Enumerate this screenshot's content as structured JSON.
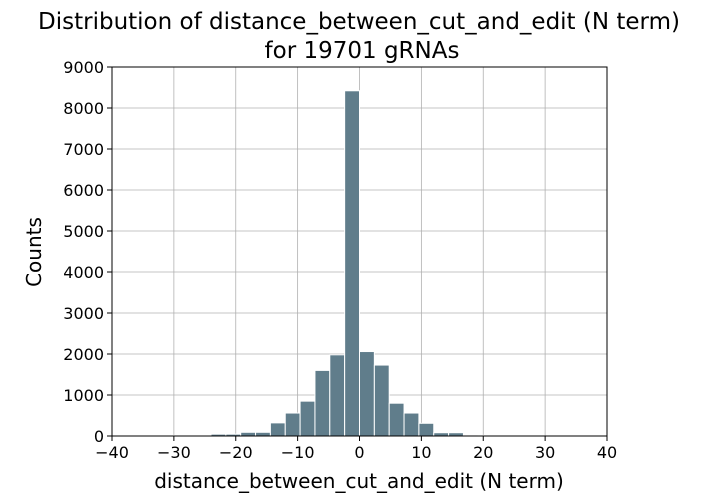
{
  "chart_data": {
    "type": "bar",
    "title_line1": "Distribution of distance_between_cut_and_edit (N term)",
    "title_line2": "for 19701 gRNAs",
    "xlabel": "distance_between_cut_and_edit (N term)",
    "ylabel": "Counts",
    "xlim": [
      -40,
      40
    ],
    "ylim": [
      0,
      9000
    ],
    "xticks": [
      -40,
      -30,
      -20,
      -10,
      0,
      10,
      20,
      30,
      40
    ],
    "yticks": [
      0,
      1000,
      2000,
      3000,
      4000,
      5000,
      6000,
      7000,
      8000,
      9000
    ],
    "grid": true,
    "bar_color": "#607d8b",
    "bin_width": 2.4,
    "bins": [
      {
        "x": -30.0,
        "value": 15
      },
      {
        "x": -25.2,
        "value": 15
      },
      {
        "x": -22.8,
        "value": 45
      },
      {
        "x": -20.4,
        "value": 45
      },
      {
        "x": -18.0,
        "value": 90
      },
      {
        "x": -15.6,
        "value": 90
      },
      {
        "x": -13.2,
        "value": 320
      },
      {
        "x": -10.8,
        "value": 560
      },
      {
        "x": -8.4,
        "value": 850
      },
      {
        "x": -6.0,
        "value": 1600
      },
      {
        "x": -3.6,
        "value": 1980
      },
      {
        "x": -1.2,
        "value": 8420
      },
      {
        "x": 1.2,
        "value": 2060
      },
      {
        "x": 3.6,
        "value": 1730
      },
      {
        "x": 6.0,
        "value": 800
      },
      {
        "x": 8.4,
        "value": 560
      },
      {
        "x": 10.8,
        "value": 310
      },
      {
        "x": 13.2,
        "value": 80
      },
      {
        "x": 15.6,
        "value": 80
      },
      {
        "x": 18.0,
        "value": 25
      },
      {
        "x": 20.4,
        "value": 15
      },
      {
        "x": 22.8,
        "value": 15
      },
      {
        "x": 25.2,
        "value": 15
      },
      {
        "x": 27.6,
        "value": 15
      },
      {
        "x": 34.8,
        "value": 15
      }
    ]
  }
}
